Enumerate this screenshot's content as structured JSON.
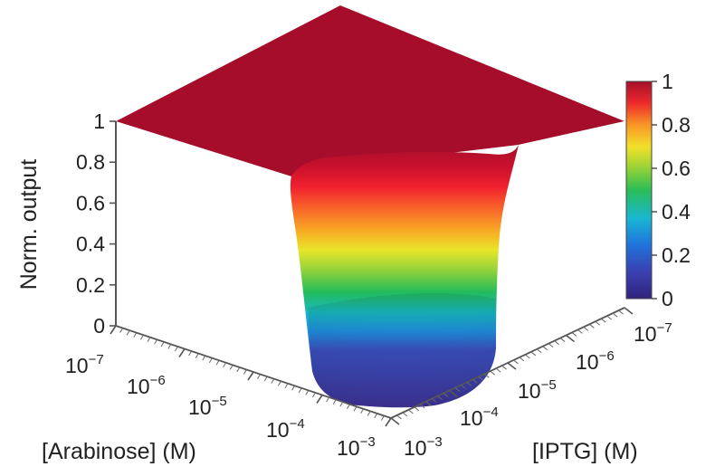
{
  "chart_data": {
    "type": "surface3d",
    "title": "",
    "zlabel": "Norm. output",
    "xlabel": "[Arabinose] (M)",
    "ylabel": "[IPTG] (M)",
    "zlim": [
      0,
      1
    ],
    "z_ticks": [
      "0",
      "0.2",
      "0.4",
      "0.6",
      "0.8",
      "1"
    ],
    "x_ticks": [
      {
        "base": "10",
        "exp": "−7"
      },
      {
        "base": "10",
        "exp": "−6"
      },
      {
        "base": "10",
        "exp": "−5"
      },
      {
        "base": "10",
        "exp": "−4"
      },
      {
        "base": "10",
        "exp": "−3"
      }
    ],
    "y_ticks": [
      {
        "base": "10",
        "exp": "−3"
      },
      {
        "base": "10",
        "exp": "−4"
      },
      {
        "base": "10",
        "exp": "−5"
      },
      {
        "base": "10",
        "exp": "−6"
      },
      {
        "base": "10",
        "exp": "−7"
      }
    ],
    "colorbar": {
      "ticks": [
        "0",
        "0.2",
        "0.4",
        "0.6",
        "0.8",
        "1"
      ],
      "range": [
        0,
        1
      ],
      "colormap": "jet"
    },
    "surface_description_values": {
      "plateau_output": 1,
      "minimum_output": 0,
      "minimum_at": {
        "arabinose_M": "1e-3",
        "iptg_M": "1e-3"
      }
    },
    "colors": {
      "low": "#3b2f8f",
      "high": "#a50f2a"
    }
  }
}
